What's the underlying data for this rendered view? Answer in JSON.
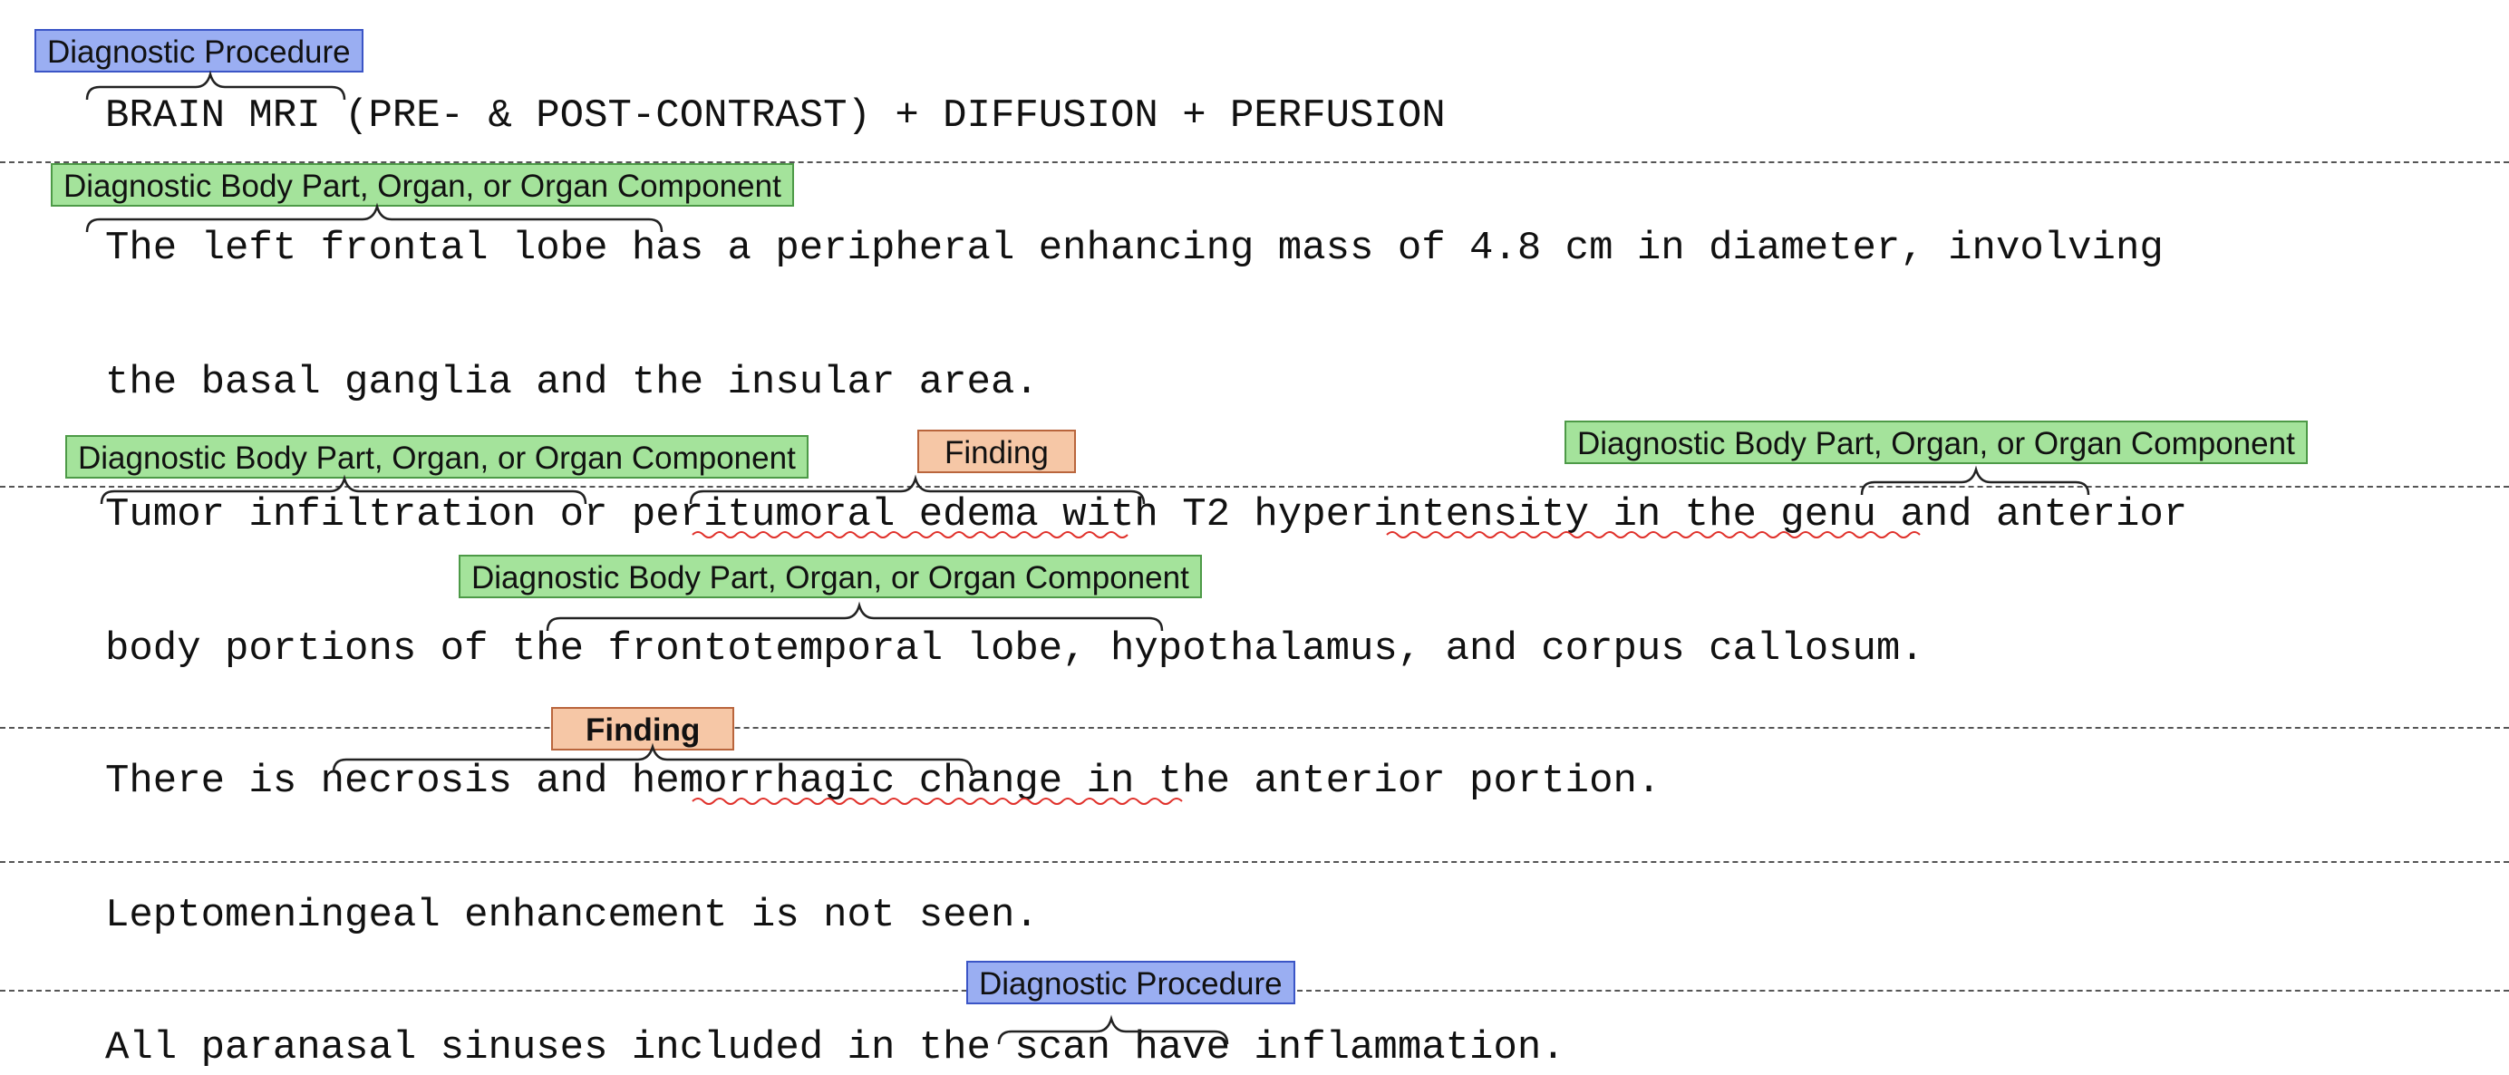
{
  "lines": [
    "BRAIN MRI (PRE- & POST-CONTRAST) + DIFFUSION + PERFUSION",
    "The left frontal lobe has a peripheral enhancing mass of 4.8 cm in diameter, involving",
    "the basal ganglia and the insular area.",
    "Tumor infiltration or peritumoral edema with T2 hyperintensity in the genu and anterior",
    "body portions of the frontotemporal lobe, hypothalamus, and corpus callosum.",
    "There is necrosis and hemorrhagic change in the anterior portion.",
    "Leptomeningeal enhancement is not seen.",
    "All paranasal sinuses included in the scan have inflammation."
  ],
  "labels": [
    {
      "text": "Diagnostic Procedure",
      "type": "procedure"
    },
    {
      "text": "Diagnostic Body Part, Organ, or Organ Component",
      "type": "body_part"
    },
    {
      "text": "Diagnostic Body Part, Organ, or Organ Component",
      "type": "body_part"
    },
    {
      "text": "Finding",
      "type": "finding"
    },
    {
      "text": "Diagnostic Body Part, Organ, or Organ Component",
      "type": "body_part"
    },
    {
      "text": "Diagnostic Body Part, Organ, or Organ Component",
      "type": "body_part"
    },
    {
      "text": "Finding",
      "type": "finding"
    },
    {
      "text": "Diagnostic Procedure",
      "type": "procedure"
    }
  ],
  "colors": {
    "procedure": "#9aaef2",
    "body_part": "#a4e39b",
    "finding": "#f6c7a6",
    "spellcheck_underline": "#e0302a"
  }
}
